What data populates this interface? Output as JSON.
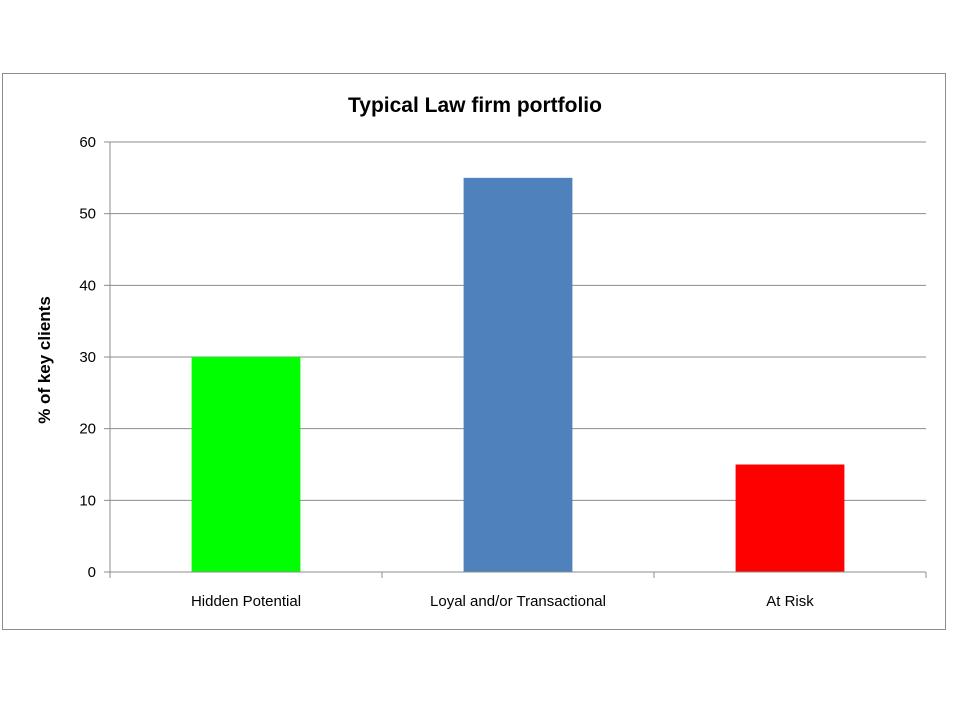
{
  "chart_data": {
    "type": "bar",
    "title": "Typical Law firm portfolio",
    "xlabel": "",
    "ylabel": "% of key clients",
    "categories": [
      "Hidden Potential",
      "Loyal and/or Transactional",
      "At Risk"
    ],
    "values": [
      30,
      55,
      15
    ],
    "bar_colors": [
      "#00ff00",
      "#4f81bd",
      "#ff0000"
    ],
    "ylim": [
      0,
      60
    ],
    "yticks": [
      "0",
      "10",
      "20",
      "30",
      "40",
      "50",
      "60"
    ],
    "grid": true,
    "legend": "none"
  }
}
